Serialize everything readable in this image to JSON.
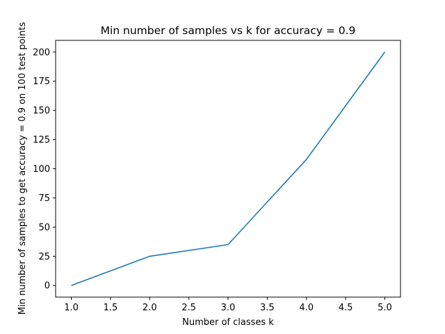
{
  "chart_data": {
    "type": "line",
    "title": "Min number of samples vs k for accuracy = 0.9",
    "xlabel": "Number of classes k",
    "ylabel": "Min number of samples to get accuracy = 0.9 on 100 test points",
    "x": [
      1.0,
      2.0,
      3.0,
      4.0,
      5.0
    ],
    "series": [
      {
        "name": "",
        "values": [
          0,
          25,
          35,
          108,
          200
        ],
        "color": "#1f77b4"
      }
    ],
    "xlim": [
      0.8,
      5.2
    ],
    "ylim": [
      -10,
      210
    ],
    "xticks": [
      1.0,
      1.5,
      2.0,
      2.5,
      3.0,
      3.5,
      4.0,
      4.5,
      5.0
    ],
    "xtick_labels": [
      "1.0",
      "1.5",
      "2.0",
      "2.5",
      "3.0",
      "3.5",
      "4.0",
      "4.5",
      "5.0"
    ],
    "yticks": [
      0,
      25,
      50,
      75,
      100,
      125,
      150,
      175,
      200
    ],
    "ytick_labels": [
      "0",
      "25",
      "50",
      "75",
      "100",
      "125",
      "150",
      "175",
      "200"
    ],
    "grid": false,
    "legend": "none"
  }
}
